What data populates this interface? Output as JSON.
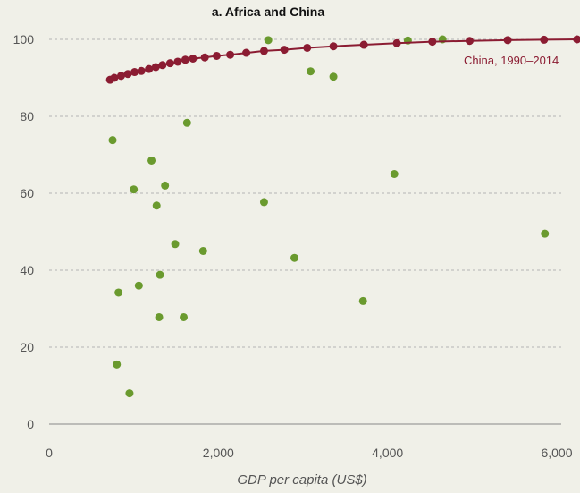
{
  "chart_data": {
    "type": "scatter",
    "title": "a. Africa and China",
    "xlabel": "GDP per capita (US$)",
    "ylabel": "",
    "xlim": [
      0,
      6000
    ],
    "ylim": [
      0,
      100
    ],
    "xticks": [
      0,
      2000,
      4000,
      6000
    ],
    "xtick_labels": [
      "0",
      "2,000",
      "4,000",
      "6,000"
    ],
    "yticks": [
      0,
      20,
      40,
      60,
      80,
      100
    ],
    "ytick_labels": [
      "0",
      "20",
      "40",
      "60",
      "80",
      "100"
    ],
    "grid": "horizontal dashed",
    "series": [
      {
        "name": "China, 1990–2014",
        "color": "#8b1c32",
        "connected": true,
        "points": [
          [
            720,
            89.5
          ],
          [
            770,
            90.0
          ],
          [
            850,
            90.5
          ],
          [
            930,
            91.0
          ],
          [
            1010,
            91.5
          ],
          [
            1090,
            91.8
          ],
          [
            1180,
            92.3
          ],
          [
            1260,
            92.8
          ],
          [
            1340,
            93.3
          ],
          [
            1430,
            93.8
          ],
          [
            1520,
            94.2
          ],
          [
            1610,
            94.7
          ],
          [
            1700,
            95.0
          ],
          [
            1840,
            95.3
          ],
          [
            1980,
            95.7
          ],
          [
            2140,
            96.0
          ],
          [
            2330,
            96.5
          ],
          [
            2540,
            97.0
          ],
          [
            2780,
            97.3
          ],
          [
            3050,
            97.8
          ],
          [
            3360,
            98.2
          ],
          [
            3720,
            98.6
          ],
          [
            4110,
            99.0
          ],
          [
            4530,
            99.4
          ],
          [
            4970,
            99.6
          ],
          [
            5420,
            99.8
          ],
          [
            5850,
            99.9
          ],
          [
            6240,
            100.0
          ]
        ]
      },
      {
        "name": "",
        "color": "#6a9a2e",
        "connected": false,
        "points": [
          [
            750,
            73.8
          ],
          [
            800,
            15.5
          ],
          [
            820,
            34.2
          ],
          [
            950,
            8.0
          ],
          [
            1000,
            61.0
          ],
          [
            1060,
            36.0
          ],
          [
            1210,
            68.5
          ],
          [
            1270,
            56.8
          ],
          [
            1300,
            27.8
          ],
          [
            1310,
            38.8
          ],
          [
            1370,
            62.0
          ],
          [
            1490,
            46.8
          ],
          [
            1590,
            27.8
          ],
          [
            1630,
            78.3
          ],
          [
            1820,
            45.0
          ],
          [
            2540,
            57.7
          ],
          [
            2590,
            99.8
          ],
          [
            2900,
            43.2
          ],
          [
            3090,
            91.7
          ],
          [
            3360,
            90.3
          ],
          [
            3710,
            32.0
          ],
          [
            4080,
            65.0
          ],
          [
            4240,
            99.7
          ],
          [
            4650,
            100.0
          ],
          [
            5860,
            49.5
          ]
        ]
      }
    ],
    "annotations": [
      {
        "text": "China, 1990–2014",
        "series": 0
      }
    ]
  }
}
